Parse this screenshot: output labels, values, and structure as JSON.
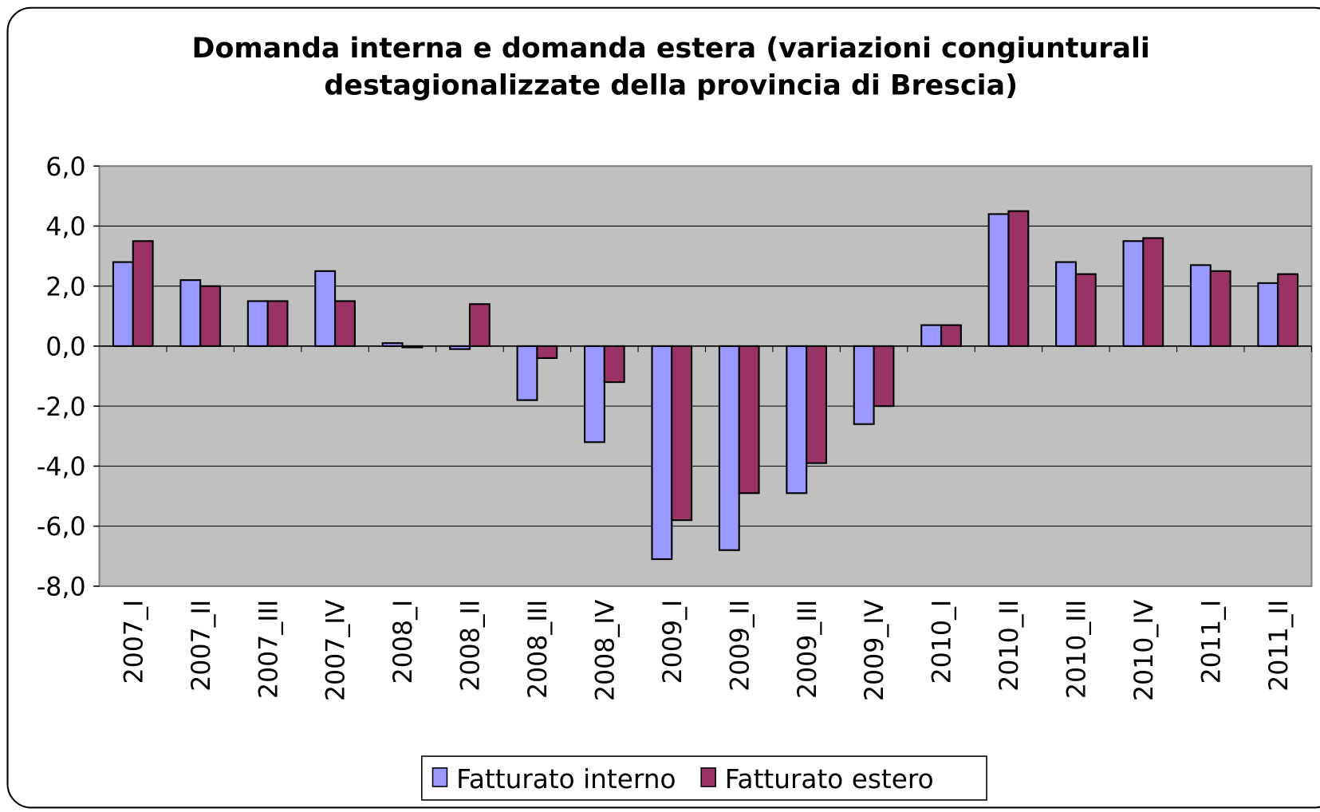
{
  "chart_data": {
    "type": "bar",
    "title": "Domanda interna e domanda estera (variazioni congiunturali destagionalizzate della provincia di Brescia)",
    "categories": [
      "2007_I",
      "2007_II",
      "2007_III",
      "2007_IV",
      "2008_I",
      "2008_II",
      "2008_III",
      "2008_IV",
      "2009_I",
      "2009_II",
      "2009_III",
      "2009_IV",
      "2010_I",
      "2010_II",
      "2010_III",
      "2010_IV",
      "2011_I",
      "2011_II"
    ],
    "series": [
      {
        "name": "Fatturato interno",
        "color": "#9999ff",
        "values": [
          2.8,
          2.2,
          1.5,
          2.5,
          0.1,
          -0.1,
          -1.8,
          -3.2,
          -7.1,
          -6.8,
          -4.9,
          -2.6,
          0.7,
          4.4,
          2.8,
          3.5,
          2.7,
          2.1
        ]
      },
      {
        "name": "Fatturato estero",
        "color": "#993366",
        "values": [
          3.5,
          2.0,
          1.5,
          1.5,
          0.0,
          1.4,
          -0.4,
          -1.2,
          -5.8,
          -4.9,
          -3.9,
          -2.0,
          0.7,
          4.5,
          2.4,
          3.6,
          2.5,
          2.4
        ]
      }
    ],
    "ylim": [
      -8,
      6
    ],
    "yticks": [
      {
        "value": -8,
        "label": "-8,0"
      },
      {
        "value": -6,
        "label": "-6,0"
      },
      {
        "value": -4,
        "label": "-4,0"
      },
      {
        "value": -2,
        "label": "-2,0"
      },
      {
        "value": 0,
        "label": "0,0"
      },
      {
        "value": 2,
        "label": "2,0"
      },
      {
        "value": 4,
        "label": "4,0"
      },
      {
        "value": 6,
        "label": "6,0"
      }
    ],
    "grid": true,
    "legend": "bottom"
  }
}
